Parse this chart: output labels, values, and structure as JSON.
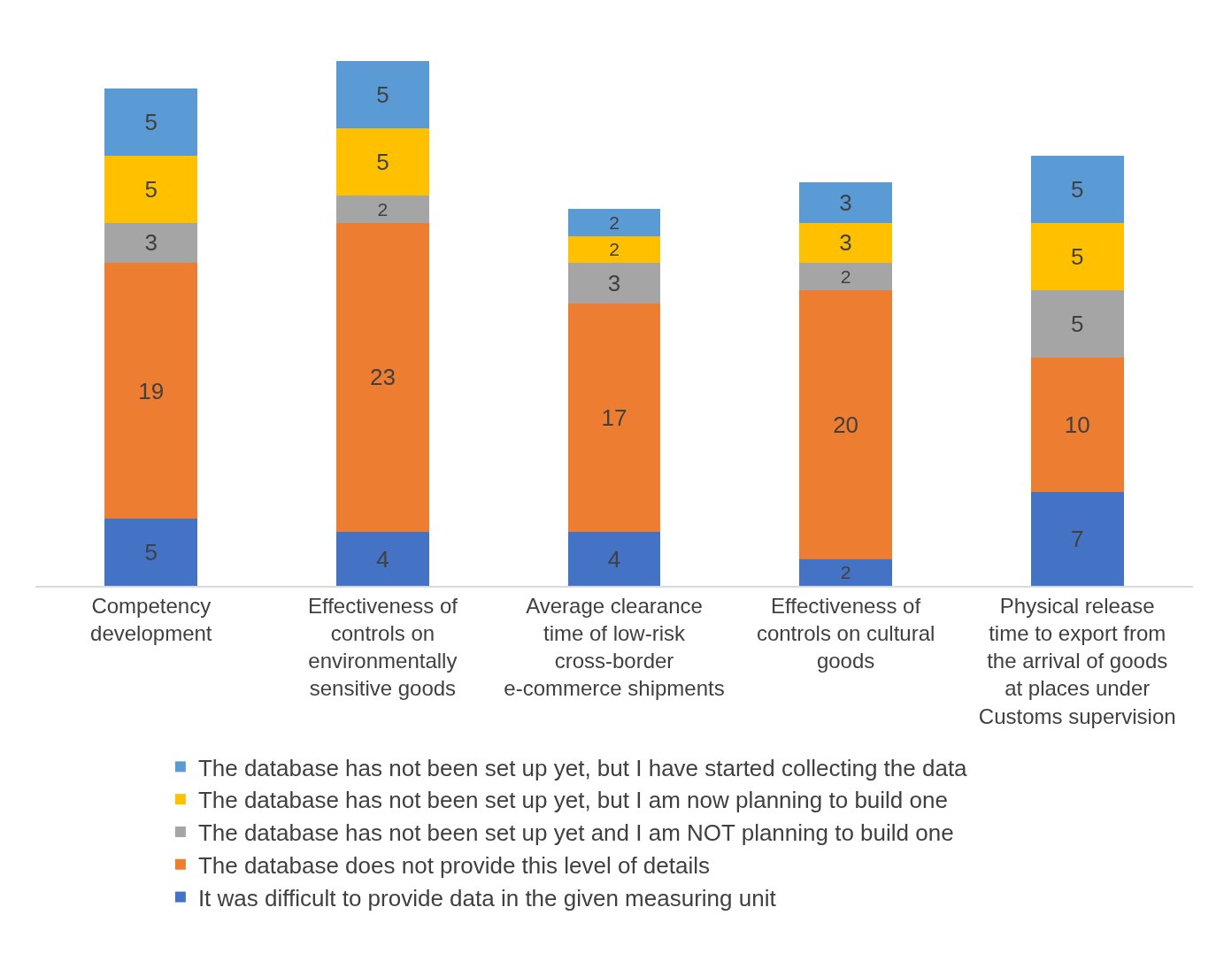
{
  "chart_data": {
    "type": "bar",
    "stacked": true,
    "data_labels": true,
    "legend": "bottom",
    "tick_labels": "x",
    "categories": [
      "Competency development",
      "Effectiveness of controls on environmentally sensitive goods",
      "Average clearance time of low-risk cross-border e-commerce shipments",
      "Effectiveness of controls on cultural goods",
      "Physical release time to export from the arrival of goods at places under Customs supervision"
    ],
    "series": [
      {
        "name": "It was difficult to provide data in the given measuring unit",
        "color": "#4472c4",
        "values": [
          5,
          4,
          4,
          2,
          7
        ]
      },
      {
        "name": "The database does not provide this level of details",
        "color": "#ed7d31",
        "values": [
          19,
          23,
          17,
          20,
          10
        ]
      },
      {
        "name": "The database has not been set up yet and I am NOT planning to build one",
        "color": "#a5a5a5",
        "values": [
          3,
          2,
          3,
          2,
          5
        ]
      },
      {
        "name": "The database has not been set up yet, but I am now planning to build one",
        "color": "#ffc000",
        "values": [
          5,
          5,
          2,
          3,
          5
        ]
      },
      {
        "name": "The database has not been set up yet, but I have started collecting the data",
        "color": "#5b9bd5",
        "values": [
          5,
          5,
          2,
          3,
          5
        ]
      }
    ]
  }
}
